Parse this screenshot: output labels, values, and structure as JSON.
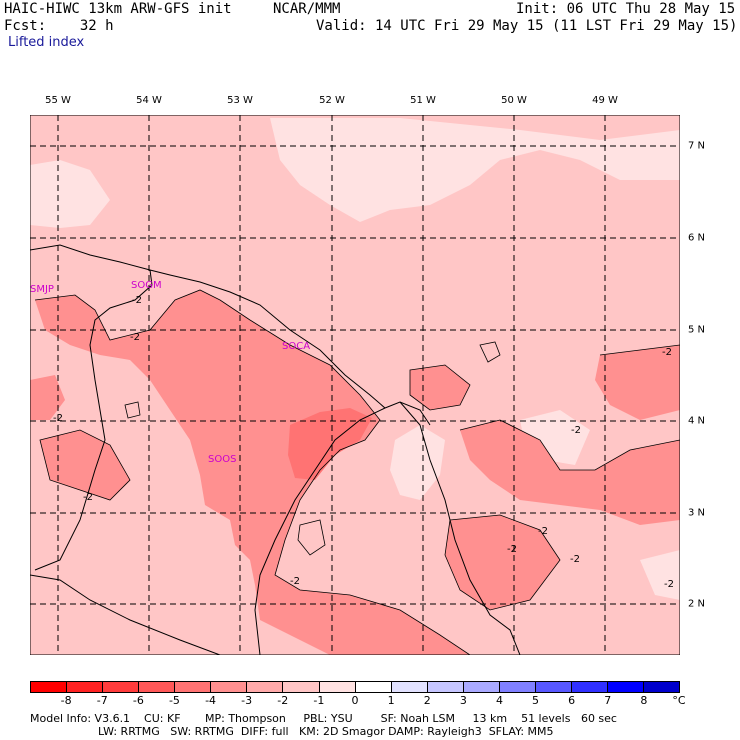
{
  "header": {
    "model": "HAIC-HIWC 13km ARW-GFS init",
    "center": "NCAR/MMM",
    "init": "Init: 06 UTC Thu 28 May 15",
    "fcst": "Fcst:    32 h",
    "valid": "Valid: 14 UTC Fri 29 May 15 (11 LST Fri 29 May 15)",
    "field": "Lifted index"
  },
  "map": {
    "lon_labels": [
      "55 W",
      "54 W",
      "53 W",
      "52 W",
      "51 W",
      "50 W",
      "49 W"
    ],
    "lat_labels": [
      "7 N",
      "6 N",
      "5 N",
      "4 N",
      "3 N",
      "2 N"
    ],
    "places": [
      "SMJP",
      "SOGM",
      "SOCA",
      "SOOS"
    ],
    "contour_labels": [
      "-2",
      "-2",
      "-2",
      "-2",
      "-2",
      "-2",
      "-2",
      "-2",
      "-2",
      "-2",
      "-2"
    ]
  },
  "colorbar": {
    "labels": [
      "-8",
      "-7",
      "-6",
      "-5",
      "-4",
      "-3",
      "-2",
      "-1",
      "0",
      "1",
      "2",
      "3",
      "4",
      "5",
      "6",
      "7",
      "8"
    ],
    "unit": "°C",
    "colors": [
      "#ff0000",
      "#ff2222",
      "#ff3c3c",
      "#ff5858",
      "#ff7373",
      "#ff9090",
      "#ffaaaa",
      "#ffc6c6",
      "#ffe2e2",
      "#ffffff",
      "#e2e2ff",
      "#c6c6ff",
      "#aaaaff",
      "#8080ff",
      "#5858ff",
      "#3030ff",
      "#0000ff",
      "#0000cc"
    ]
  },
  "footer": {
    "line1": "Model Info: V3.6.1    CU: KF       MP: Thompson     PBL: YSU        SF: Noah LSM     13 km    51 levels   60 sec",
    "line2": "LW: RRTMG   SW: RRTMG  DIFF: full   KM: 2D Smagor DAMP: Rayleigh3  SFLAY: MM5"
  }
}
